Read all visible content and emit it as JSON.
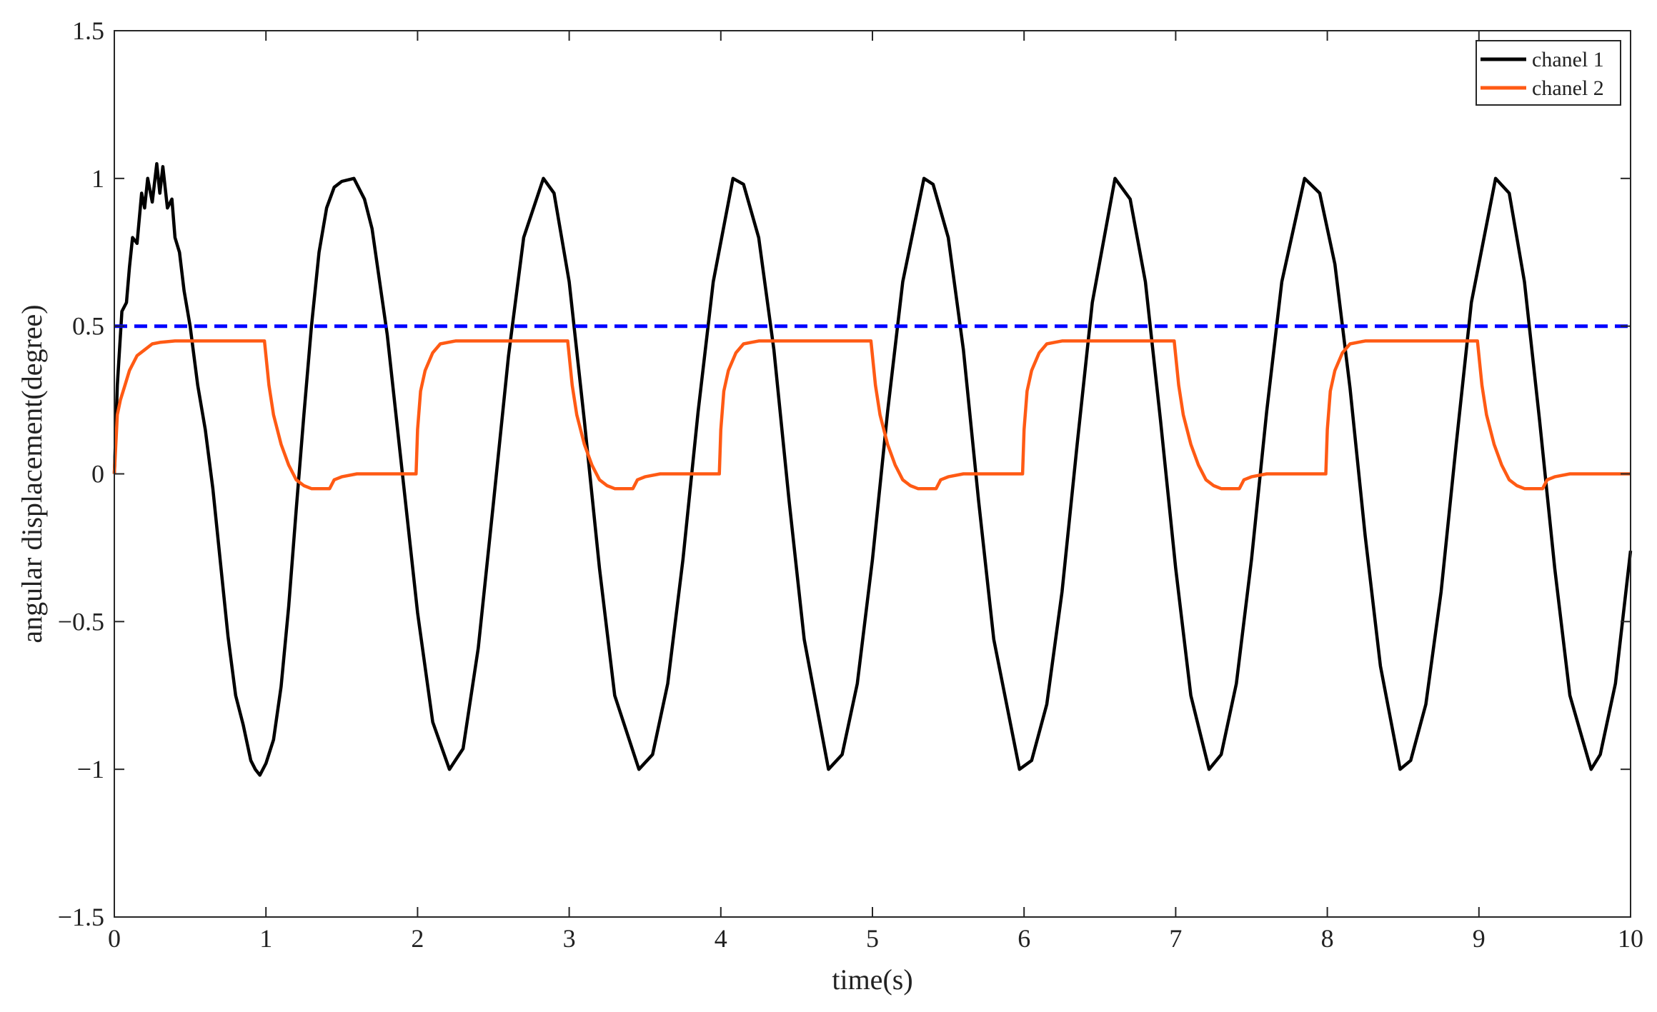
{
  "chart_data": {
    "type": "line",
    "title": "",
    "xlabel": "time(s)",
    "ylabel": "angular displacement(degree)",
    "xlim": [
      0,
      10
    ],
    "ylim": [
      -1.5,
      1.5
    ],
    "grid": false,
    "legend_placement": "top-right",
    "x_ticks": [
      0,
      1,
      2,
      3,
      4,
      5,
      6,
      7,
      8,
      9,
      10
    ],
    "x_tick_labels": [
      "0",
      "1",
      "2",
      "3",
      "4",
      "5",
      "6",
      "7",
      "8",
      "9",
      "10"
    ],
    "y_ticks": [
      1.5,
      1,
      0.5,
      0,
      -0.5,
      -1,
      -1.5
    ],
    "y_tick_labels": [
      "1.5",
      "1",
      "0.5",
      "0",
      "−0.5",
      "−1",
      "−1.5"
    ],
    "series": [
      {
        "name": "chanel 1",
        "color": "#000000",
        "style": "solid",
        "x": [
          0,
          0.02,
          0.05,
          0.08,
          0.1,
          0.12,
          0.15,
          0.18,
          0.2,
          0.22,
          0.25,
          0.28,
          0.3,
          0.32,
          0.35,
          0.38,
          0.4,
          0.43,
          0.46,
          0.5,
          0.55,
          0.6,
          0.65,
          0.7,
          0.75,
          0.8,
          0.85,
          0.9,
          0.93,
          0.96,
          1.0,
          1.05,
          1.1,
          1.15,
          1.2,
          1.25,
          1.3,
          1.35,
          1.4,
          1.45,
          1.5,
          1.58,
          1.65,
          1.7,
          1.8,
          1.9,
          2.0,
          2.1,
          2.21,
          2.3,
          2.4,
          2.5,
          2.6,
          2.7,
          2.83,
          2.9,
          3.0,
          3.1,
          3.2,
          3.3,
          3.46,
          3.55,
          3.65,
          3.75,
          3.85,
          3.95,
          4.08,
          4.15,
          4.25,
          4.35,
          4.45,
          4.55,
          4.71,
          4.8,
          4.9,
          5.0,
          5.1,
          5.2,
          5.34,
          5.4,
          5.5,
          5.6,
          5.7,
          5.8,
          5.97,
          6.05,
          6.15,
          6.25,
          6.35,
          6.45,
          6.6,
          6.7,
          6.8,
          6.9,
          7.0,
          7.1,
          7.22,
          7.3,
          7.4,
          7.5,
          7.6,
          7.7,
          7.85,
          7.95,
          8.05,
          8.15,
          8.25,
          8.35,
          8.48,
          8.55,
          8.65,
          8.75,
          8.85,
          8.95,
          9.11,
          9.2,
          9.3,
          9.4,
          9.5,
          9.6,
          9.74,
          9.8,
          9.9,
          10.0
        ],
        "y": [
          0,
          0.3,
          0.55,
          0.58,
          0.7,
          0.8,
          0.78,
          0.95,
          0.9,
          1.0,
          0.92,
          1.05,
          0.95,
          1.04,
          0.9,
          0.93,
          0.8,
          0.75,
          0.62,
          0.5,
          0.3,
          0.15,
          -0.05,
          -0.3,
          -0.55,
          -0.75,
          -0.85,
          -0.97,
          -1.0,
          -1.02,
          -0.98,
          -0.9,
          -0.72,
          -0.45,
          -0.12,
          0.2,
          0.5,
          0.75,
          0.9,
          0.97,
          0.99,
          1.0,
          0.93,
          0.83,
          0.47,
          0.0,
          -0.47,
          -0.84,
          -1.0,
          -0.93,
          -0.59,
          -0.1,
          0.4,
          0.8,
          1.0,
          0.95,
          0.65,
          0.18,
          -0.32,
          -0.75,
          -1.0,
          -0.95,
          -0.71,
          -0.29,
          0.21,
          0.65,
          1.0,
          0.98,
          0.8,
          0.42,
          -0.09,
          -0.56,
          -1.0,
          -0.95,
          -0.71,
          -0.29,
          0.21,
          0.65,
          1.0,
          0.98,
          0.8,
          0.42,
          -0.09,
          -0.56,
          -1.0,
          -0.97,
          -0.78,
          -0.4,
          0.1,
          0.58,
          1.0,
          0.93,
          0.65,
          0.18,
          -0.32,
          -0.75,
          -1.0,
          -0.95,
          -0.71,
          -0.29,
          0.21,
          0.65,
          1.0,
          0.95,
          0.71,
          0.29,
          -0.21,
          -0.65,
          -1.0,
          -0.97,
          -0.78,
          -0.4,
          0.1,
          0.58,
          1.0,
          0.95,
          0.65,
          0.18,
          -0.32,
          -0.75,
          -1.0,
          -0.95,
          -0.71,
          -0.26
        ]
      },
      {
        "name": "chanel 2",
        "color": "#ff5a14",
        "style": "solid",
        "x": [
          0,
          0.02,
          0.04,
          0.07,
          0.1,
          0.15,
          0.2,
          0.25,
          0.3,
          0.4,
          0.5,
          0.7,
          0.99,
          1.0,
          1.02,
          1.05,
          1.1,
          1.15,
          1.2,
          1.25,
          1.3,
          1.35,
          1.4,
          1.42,
          1.45,
          1.5,
          1.6,
          1.8,
          1.99,
          2.0,
          2.02,
          2.05,
          2.1,
          2.15,
          2.2,
          2.25,
          2.3,
          2.4,
          2.5,
          2.7,
          2.99,
          3.0,
          3.02,
          3.05,
          3.1,
          3.15,
          3.2,
          3.25,
          3.3,
          3.35,
          3.4,
          3.42,
          3.45,
          3.5,
          3.6,
          3.8,
          3.99,
          4.0,
          4.02,
          4.05,
          4.1,
          4.15,
          4.2,
          4.25,
          4.3,
          4.4,
          4.5,
          4.7,
          4.99,
          5.0,
          5.02,
          5.05,
          5.1,
          5.15,
          5.2,
          5.25,
          5.3,
          5.35,
          5.4,
          5.42,
          5.45,
          5.5,
          5.6,
          5.8,
          5.99,
          6.0,
          6.02,
          6.05,
          6.1,
          6.15,
          6.2,
          6.25,
          6.3,
          6.4,
          6.5,
          6.7,
          6.99,
          7.0,
          7.02,
          7.05,
          7.1,
          7.15,
          7.2,
          7.25,
          7.3,
          7.35,
          7.4,
          7.42,
          7.45,
          7.5,
          7.6,
          7.8,
          7.99,
          8.0,
          8.02,
          8.05,
          8.1,
          8.15,
          8.2,
          8.25,
          8.3,
          8.4,
          8.5,
          8.7,
          8.99,
          9.0,
          9.02,
          9.05,
          9.1,
          9.15,
          9.2,
          9.25,
          9.3,
          9.35,
          9.4,
          9.42,
          9.45,
          9.5,
          9.6,
          9.8,
          10.0
        ],
        "y": [
          0,
          0.2,
          0.25,
          0.3,
          0.35,
          0.4,
          0.42,
          0.44,
          0.445,
          0.45,
          0.45,
          0.45,
          0.45,
          0.4,
          0.3,
          0.2,
          0.1,
          0.03,
          -0.02,
          -0.04,
          -0.05,
          -0.05,
          -0.05,
          -0.05,
          -0.02,
          -0.01,
          0,
          0,
          0,
          0.15,
          0.28,
          0.35,
          0.41,
          0.44,
          0.445,
          0.45,
          0.45,
          0.45,
          0.45,
          0.45,
          0.45,
          0.4,
          0.3,
          0.2,
          0.1,
          0.03,
          -0.02,
          -0.04,
          -0.05,
          -0.05,
          -0.05,
          -0.05,
          -0.02,
          -0.01,
          0,
          0,
          0,
          0.15,
          0.28,
          0.35,
          0.41,
          0.44,
          0.445,
          0.45,
          0.45,
          0.45,
          0.45,
          0.45,
          0.45,
          0.4,
          0.3,
          0.2,
          0.1,
          0.03,
          -0.02,
          -0.04,
          -0.05,
          -0.05,
          -0.05,
          -0.05,
          -0.02,
          -0.01,
          0,
          0,
          0,
          0.15,
          0.28,
          0.35,
          0.41,
          0.44,
          0.445,
          0.45,
          0.45,
          0.45,
          0.45,
          0.45,
          0.45,
          0.4,
          0.3,
          0.2,
          0.1,
          0.03,
          -0.02,
          -0.04,
          -0.05,
          -0.05,
          -0.05,
          -0.05,
          -0.02,
          -0.01,
          0,
          0,
          0,
          0.15,
          0.28,
          0.35,
          0.41,
          0.44,
          0.445,
          0.45,
          0.45,
          0.45,
          0.45,
          0.45,
          0.45,
          0.4,
          0.3,
          0.2,
          0.1,
          0.03,
          -0.02,
          -0.04,
          -0.05,
          -0.05,
          -0.05,
          -0.05,
          -0.02,
          -0.01,
          0,
          0,
          0
        ]
      },
      {
        "color": "#0000ff",
        "style": "dashed",
        "x": [
          0,
          10
        ],
        "y": [
          0.5,
          0.5
        ]
      }
    ]
  }
}
